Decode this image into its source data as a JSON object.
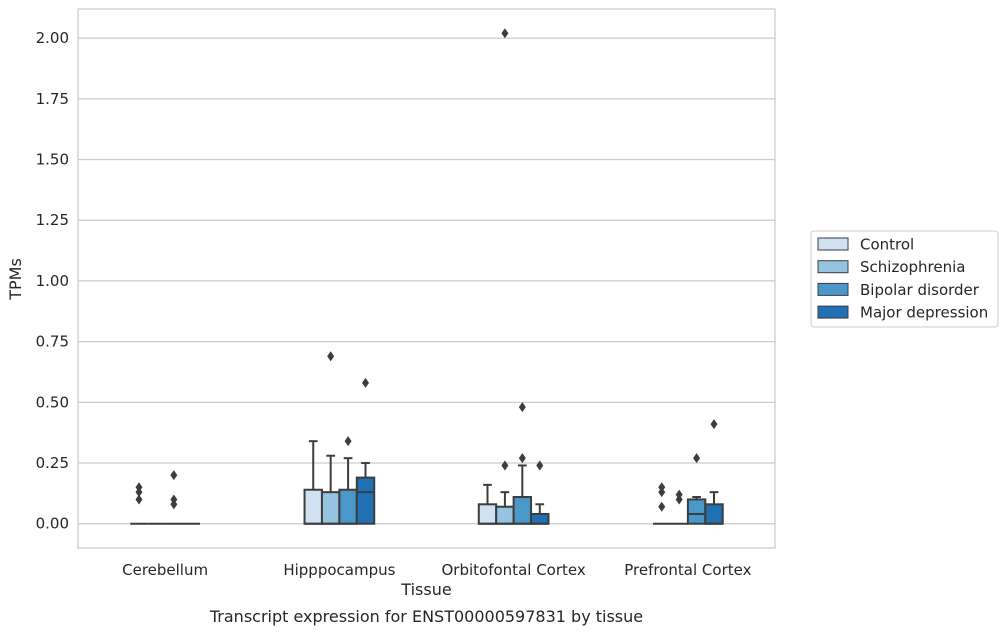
{
  "chart_data": {
    "type": "boxplot",
    "caption": "Transcript expression for ENST00000597831 by tissue",
    "xlabel": "Tissue",
    "ylabel": "TPMs",
    "ylim": [
      -0.1,
      2.12
    ],
    "yticks": [
      "0.00",
      "0.25",
      "0.50",
      "0.75",
      "1.00",
      "1.25",
      "1.50",
      "1.75",
      "2.00"
    ],
    "ytick_values": [
      0,
      0.25,
      0.5,
      0.75,
      1.0,
      1.25,
      1.5,
      1.75,
      2.0
    ],
    "grid": true,
    "legend_position": "right",
    "categories": [
      "Cerebellum",
      "Hipppocampus",
      "Orbitofontal Cortex",
      "Prefrontal Cortex"
    ],
    "series": [
      {
        "name": "Control",
        "color": "#d0e1f2",
        "boxes": [
          {
            "q1": 0,
            "median": 0,
            "q3": 0,
            "whisker_low": 0,
            "whisker_high": 0,
            "outliers": [
              0.1,
              0.13,
              0.15
            ]
          },
          {
            "q1": 0,
            "median": 0,
            "q3": 0.14,
            "whisker_low": 0,
            "whisker_high": 0.34,
            "outliers": []
          },
          {
            "q1": 0,
            "median": 0,
            "q3": 0.08,
            "whisker_low": 0,
            "whisker_high": 0.16,
            "outliers": []
          },
          {
            "q1": 0,
            "median": 0,
            "q3": 0,
            "whisker_low": 0,
            "whisker_high": 0,
            "outliers": [
              0.07,
              0.13,
              0.15
            ]
          }
        ]
      },
      {
        "name": "Schizophrenia",
        "color": "#94c4df",
        "boxes": [
          {
            "q1": 0,
            "median": 0,
            "q3": 0,
            "whisker_low": 0,
            "whisker_high": 0,
            "outliers": []
          },
          {
            "q1": 0,
            "median": 0,
            "q3": 0.13,
            "whisker_low": 0,
            "whisker_high": 0.28,
            "outliers": [
              0.69
            ]
          },
          {
            "q1": 0,
            "median": 0,
            "q3": 0.07,
            "whisker_low": 0,
            "whisker_high": 0.13,
            "outliers": [
              0.24,
              2.02
            ]
          },
          {
            "q1": 0,
            "median": 0,
            "q3": 0,
            "whisker_low": 0,
            "whisker_high": 0,
            "outliers": [
              0.1,
              0.12
            ]
          }
        ]
      },
      {
        "name": "Bipolar disorder",
        "color": "#4a98c9",
        "boxes": [
          {
            "q1": 0,
            "median": 0,
            "q3": 0,
            "whisker_low": 0,
            "whisker_high": 0,
            "outliers": [
              0.08,
              0.1,
              0.2
            ]
          },
          {
            "q1": 0,
            "median": 0,
            "q3": 0.14,
            "whisker_low": 0,
            "whisker_high": 0.27,
            "outliers": [
              0.34
            ]
          },
          {
            "q1": 0,
            "median": 0,
            "q3": 0.11,
            "whisker_low": 0,
            "whisker_high": 0.24,
            "outliers": [
              0.27,
              0.48
            ]
          },
          {
            "q1": 0,
            "median": 0.04,
            "q3": 0.1,
            "whisker_low": 0,
            "whisker_high": 0.11,
            "outliers": [
              0.27
            ]
          }
        ]
      },
      {
        "name": "Major depression",
        "color": "#2070b4",
        "boxes": [
          {
            "q1": 0,
            "median": 0,
            "q3": 0,
            "whisker_low": 0,
            "whisker_high": 0,
            "outliers": []
          },
          {
            "q1": 0,
            "median": 0.13,
            "q3": 0.19,
            "whisker_low": 0,
            "whisker_high": 0.25,
            "outliers": [
              0.58
            ]
          },
          {
            "q1": 0,
            "median": 0,
            "q3": 0.04,
            "whisker_low": 0,
            "whisker_high": 0.08,
            "outliers": [
              0.24
            ]
          },
          {
            "q1": 0,
            "median": 0,
            "q3": 0.08,
            "whisker_low": 0,
            "whisker_high": 0.13,
            "outliers": [
              0.41
            ]
          }
        ]
      }
    ]
  }
}
